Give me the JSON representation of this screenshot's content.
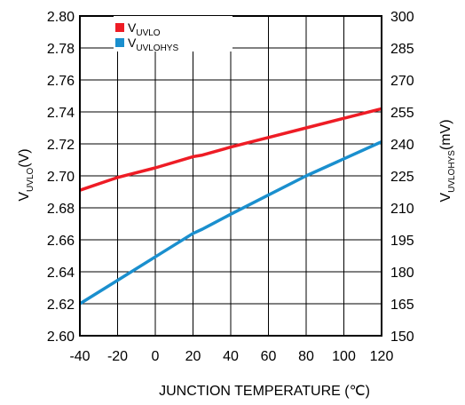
{
  "chart_data": {
    "type": "line",
    "x_ticks": [
      "-40",
      "-20",
      "0",
      "20",
      "40",
      "60",
      "80",
      "100",
      "120"
    ],
    "y_left_ticks": [
      "2.80",
      "2.78",
      "2.76",
      "2.74",
      "2.72",
      "2.70",
      "2.68",
      "2.66",
      "2.64",
      "2.62",
      "2.60"
    ],
    "y_right_ticks": [
      "300",
      "285",
      "270",
      "255",
      "240",
      "225",
      "210",
      "195",
      "180",
      "165",
      "150"
    ],
    "xlabel": "JUNCTION TEMPERATURE (℃)",
    "ylabel_left": {
      "main": "V",
      "sub": "UVLO",
      "suffix": "(V)"
    },
    "ylabel_right": {
      "main": "V",
      "sub": "UVLOHYS",
      "suffix": "(mV)"
    },
    "xlim": [
      -40,
      120
    ],
    "ylim_left": [
      2.6,
      2.8
    ],
    "ylim_right": [
      150,
      300
    ],
    "grid": true,
    "legend_position": "top-left",
    "series": [
      {
        "name_main": "V",
        "name_sub": "UVLO",
        "axis": "left",
        "color": "#ee1c25",
        "x": [
          -40,
          -20,
          0,
          20,
          25,
          40,
          60,
          80,
          100,
          120
        ],
        "y": [
          2.691,
          2.699,
          2.705,
          2.712,
          2.713,
          2.718,
          2.724,
          2.73,
          2.736,
          2.742
        ]
      },
      {
        "name_main": "V",
        "name_sub": "UVLOHYS",
        "axis": "right",
        "color": "#1a8fce",
        "x": [
          -40,
          -20,
          0,
          20,
          25,
          40,
          60,
          80,
          100,
          120
        ],
        "y": [
          165,
          176,
          187,
          198,
          200,
          207,
          216,
          225,
          233,
          241
        ]
      }
    ]
  }
}
